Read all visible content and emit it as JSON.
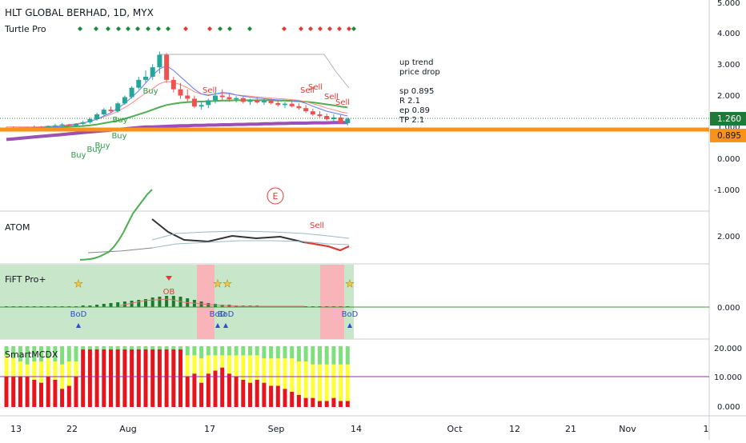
{
  "header": {
    "symbol": "HLT GLOBAL BERHAD, 1D, MYX",
    "indicator": "Turtle Pro"
  },
  "main_panel": {
    "y_ticks": [
      "5.000",
      "4.000",
      "3.000",
      "2.000",
      "1.000",
      "0.000",
      "-1.000"
    ],
    "last_price": "1.260",
    "level_price": "0.895",
    "earnings_marker": "E",
    "notes": [
      "up trend",
      "price drop",
      "",
      "sp 0.895",
      "R 2.1",
      "ep 0.89",
      "TP 2.1"
    ],
    "signals": [
      {
        "text": "Buy",
        "type": "buy"
      },
      {
        "text": "Buy",
        "type": "buy"
      },
      {
        "text": "Buy",
        "type": "buy"
      },
      {
        "text": "Buy",
        "type": "buy"
      },
      {
        "text": "Buy",
        "type": "buy"
      },
      {
        "text": "Buy",
        "type": "buy"
      },
      {
        "text": "Sell",
        "type": "sell"
      },
      {
        "text": "Sell",
        "type": "sell"
      },
      {
        "text": "Sell",
        "type": "sell"
      },
      {
        "text": "Sell",
        "type": "sell"
      },
      {
        "text": "Sell",
        "type": "sell"
      }
    ]
  },
  "atom_panel": {
    "label": "ATOM",
    "y_tick": "2.000",
    "signal": "Sell"
  },
  "fift_panel": {
    "label": "FiFT Pro+",
    "y_tick": "0.000",
    "ob_label": "OB",
    "bod_label": "BoD",
    "signal_texts": [
      "BoD",
      "BoD",
      "BoD",
      "BoD"
    ]
  },
  "smart_panel": {
    "label": "SmartMCDX",
    "y_ticks": [
      "20.000",
      "10.000",
      "0.000"
    ]
  },
  "x_axis": {
    "labels": [
      "13",
      "22",
      "Aug",
      "17",
      "Sep",
      "14",
      "Oct",
      "12",
      "21",
      "Nov",
      "1"
    ]
  },
  "colors": {
    "up": "#26a69a",
    "down": "#ef5350",
    "orange_level": "#f7931a",
    "purple_ma": "#9c4fb4",
    "green_ma": "#4caf50",
    "last_price_label": "#1f7a3a",
    "fift_bg_green": "#c8e6c9",
    "fift_bg_red": "#f8b4b8",
    "smart_red": "#e8141b",
    "smart_yellow": "#ffff33",
    "smart_green": "#7ee07a"
  },
  "chart_data": {
    "type": "candlestick",
    "title": "HLT GLOBAL BERHAD, 1D, MYX",
    "ylim": [
      -1.5,
      5.0
    ],
    "candles": [
      [
        0.95,
        1.0,
        0.9,
        0.98
      ],
      [
        0.98,
        1.02,
        0.92,
        0.96
      ],
      [
        0.96,
        1.0,
        0.9,
        0.95
      ],
      [
        0.95,
        1.0,
        0.92,
        0.97
      ],
      [
        0.97,
        1.05,
        0.93,
        0.99
      ],
      [
        0.99,
        1.03,
        0.95,
        0.98
      ],
      [
        0.98,
        1.05,
        0.95,
        1.03
      ],
      [
        1.03,
        1.1,
        0.98,
        1.05
      ],
      [
        1.05,
        1.12,
        1.0,
        1.08
      ],
      [
        1.08,
        1.1,
        1.02,
        1.04
      ],
      [
        1.04,
        1.12,
        1.0,
        1.1
      ],
      [
        1.1,
        1.2,
        1.05,
        1.15
      ],
      [
        1.15,
        1.3,
        1.1,
        1.25
      ],
      [
        1.25,
        1.45,
        1.2,
        1.4
      ],
      [
        1.4,
        1.6,
        1.35,
        1.55
      ],
      [
        1.55,
        1.65,
        1.45,
        1.5
      ],
      [
        1.5,
        1.8,
        1.45,
        1.75
      ],
      [
        1.75,
        2.0,
        1.7,
        1.95
      ],
      [
        1.95,
        2.3,
        1.9,
        2.25
      ],
      [
        2.25,
        2.6,
        2.2,
        2.5
      ],
      [
        2.5,
        2.8,
        2.4,
        2.6
      ],
      [
        2.6,
        3.0,
        2.5,
        2.9
      ],
      [
        2.9,
        3.4,
        2.7,
        3.3
      ],
      [
        3.3,
        3.35,
        2.4,
        2.5
      ],
      [
        2.5,
        2.6,
        2.1,
        2.2
      ],
      [
        2.2,
        2.4,
        1.9,
        2.0
      ],
      [
        2.0,
        2.2,
        1.8,
        1.9
      ],
      [
        1.9,
        2.0,
        1.6,
        1.65
      ],
      [
        1.65,
        1.8,
        1.55,
        1.7
      ],
      [
        1.7,
        1.9,
        1.6,
        1.85
      ],
      [
        1.85,
        2.1,
        1.75,
        2.0
      ],
      [
        2.0,
        2.2,
        1.85,
        1.95
      ],
      [
        1.95,
        2.05,
        1.8,
        1.88
      ],
      [
        1.88,
        1.98,
        1.78,
        1.92
      ],
      [
        1.92,
        1.96,
        1.75,
        1.8
      ],
      [
        1.8,
        1.9,
        1.7,
        1.85
      ],
      [
        1.85,
        1.95,
        1.75,
        1.78
      ],
      [
        1.78,
        1.9,
        1.7,
        1.83
      ],
      [
        1.83,
        1.9,
        1.72,
        1.76
      ],
      [
        1.76,
        1.85,
        1.65,
        1.7
      ],
      [
        1.7,
        1.8,
        1.6,
        1.74
      ],
      [
        1.74,
        1.82,
        1.62,
        1.66
      ],
      [
        1.66,
        1.75,
        1.55,
        1.6
      ],
      [
        1.6,
        1.7,
        1.45,
        1.5
      ],
      [
        1.5,
        1.58,
        1.35,
        1.4
      ],
      [
        1.4,
        1.5,
        1.3,
        1.35
      ],
      [
        1.35,
        1.42,
        1.2,
        1.25
      ],
      [
        1.25,
        1.4,
        1.15,
        1.3
      ],
      [
        1.3,
        1.38,
        1.1,
        1.12
      ],
      [
        1.12,
        1.3,
        1.05,
        1.26
      ]
    ],
    "orange_level": 0.895,
    "last_price": 1.26,
    "series": [
      {
        "values": [
          0.6,
          0.62,
          0.64,
          0.66,
          0.68,
          0.7,
          0.72,
          0.74,
          0.76,
          0.78,
          0.8,
          0.82,
          0.84,
          0.86,
          0.88,
          0.9,
          0.92,
          0.94,
          0.96,
          0.98,
          1.0,
          1.0,
          1.01,
          1.02,
          1.03,
          1.04,
          1.04,
          1.05,
          1.05,
          1.06,
          1.06,
          1.07,
          1.07,
          1.08,
          1.08,
          1.09,
          1.09,
          1.1,
          1.1,
          1.11,
          1.11,
          1.12,
          1.12,
          1.12,
          1.13,
          1.13,
          1.13,
          1.14,
          1.14,
          1.14
        ]
      },
      {
        "values": [
          0.95,
          0.96,
          0.96,
          0.97,
          0.97,
          0.98,
          0.98,
          0.99,
          1.0,
          1.01,
          1.02,
          1.03,
          1.05,
          1.08,
          1.12,
          1.16,
          1.2,
          1.26,
          1.33,
          1.4,
          1.47,
          1.55,
          1.63,
          1.7,
          1.74,
          1.77,
          1.79,
          1.8,
          1.81,
          1.82,
          1.83,
          1.84,
          1.84,
          1.85,
          1.85,
          1.85,
          1.85,
          1.85,
          1.85,
          1.84,
          1.84,
          1.83,
          1.82,
          1.8,
          1.78,
          1.75,
          1.72,
          1.69,
          1.65,
          1.62
        ]
      },
      {
        "values": [
          1.0,
          1.0,
          1.0,
          1.0,
          1.0,
          1.01,
          1.02,
          1.03,
          1.05,
          1.07,
          1.1,
          1.13,
          1.18,
          1.24,
          1.32,
          1.4,
          1.5,
          1.62,
          1.76,
          1.92,
          2.08,
          2.22,
          2.38,
          2.45,
          2.42,
          2.35,
          2.25,
          2.12,
          2.05,
          2.03,
          2.05,
          2.07,
          2.05,
          2.02,
          2.0,
          1.98,
          1.96,
          1.94,
          1.92,
          1.9,
          1.89,
          1.87,
          1.85,
          1.8,
          1.74,
          1.68,
          1.6,
          1.55,
          1.48,
          1.44
        ]
      },
      {
        "values": [
          0.9,
          0.9,
          0.92,
          0.94,
          0.96,
          0.98,
          1.0,
          1.0,
          1.02,
          1.05,
          1.08,
          1.12,
          1.18,
          1.25,
          1.35,
          1.45,
          1.6,
          1.75,
          1.95,
          2.15,
          2.4,
          2.65,
          2.85,
          2.95,
          2.8,
          2.6,
          2.4,
          2.2,
          2.05,
          2.0,
          2.05,
          2.1,
          2.08,
          2.02,
          1.98,
          1.95,
          1.92,
          1.9,
          1.88,
          1.86,
          1.85,
          1.84,
          1.82,
          1.75,
          1.66,
          1.58,
          1.5,
          1.45,
          1.4,
          1.35
        ]
      }
    ]
  }
}
